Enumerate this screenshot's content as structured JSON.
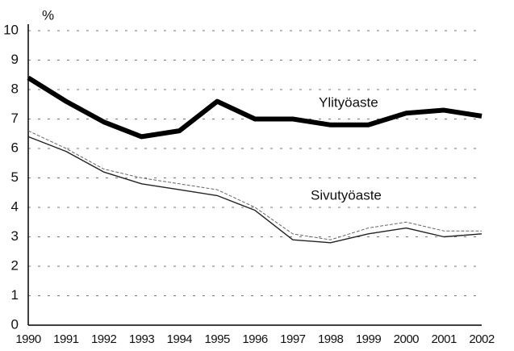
{
  "chart_data": {
    "type": "line",
    "y_label": "%",
    "categories": [
      "1990",
      "1991",
      "1992",
      "1993",
      "1994",
      "1995",
      "1996",
      "1997",
      "1998",
      "1999",
      "2000",
      "2001",
      "2002"
    ],
    "series": [
      {
        "name": "Ylityöaste",
        "color": "#000000",
        "width": 6,
        "values": [
          8.4,
          7.6,
          6.9,
          6.4,
          6.6,
          7.6,
          7.0,
          7.0,
          6.8,
          6.8,
          7.2,
          7.3,
          7.1
        ]
      },
      {
        "name": "Sivutyöaste",
        "color": "#222222",
        "width": 1.4,
        "values": [
          6.4,
          5.9,
          5.2,
          4.8,
          4.6,
          4.4,
          3.9,
          2.9,
          2.8,
          3.1,
          3.3,
          3.0,
          3.1
        ]
      },
      {
        "color": "#666666",
        "width": 1,
        "dashed": true,
        "values": [
          6.6,
          6.0,
          5.3,
          5.0,
          4.8,
          4.6,
          4.0,
          3.1,
          2.9,
          3.3,
          3.5,
          3.2,
          3.2
        ]
      }
    ],
    "ylim": [
      0,
      10
    ],
    "yticks": [
      0,
      1,
      2,
      3,
      4,
      5,
      6,
      7,
      8,
      9,
      10
    ],
    "grid": true
  }
}
